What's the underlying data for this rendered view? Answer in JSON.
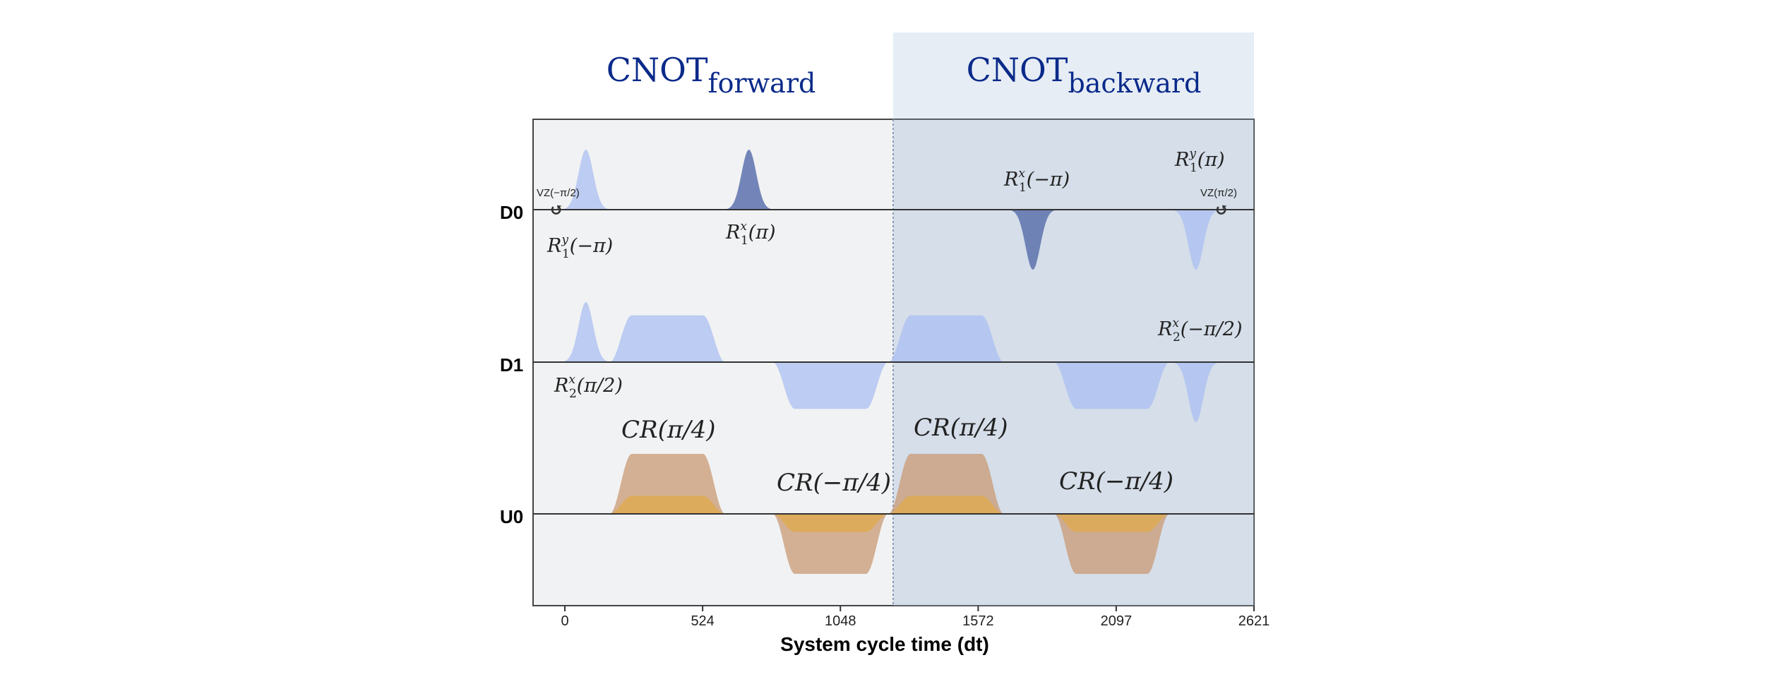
{
  "headers": {
    "forward": {
      "main": "CNOT",
      "sub": "forward"
    },
    "backward": {
      "main": "CNOT",
      "sub": "backward"
    }
  },
  "channels": [
    "D0",
    "D1",
    "U0"
  ],
  "x_axis": {
    "label": "System cycle time (dt)",
    "ticks": [
      "0",
      "524",
      "1048",
      "1572",
      "2097",
      "2621"
    ]
  },
  "vz_labels": {
    "left": "VZ(−π/2)",
    "right": "VZ(π/2)",
    "arrow_glyph": "↺"
  },
  "gate_labels": {
    "d0_ry_neg_pi": {
      "base": "R",
      "sup": "y",
      "sub": "1",
      "arg": "(−π)"
    },
    "d0_rx_pi": {
      "base": "R",
      "sup": "x",
      "sub": "1",
      "arg": "(π)"
    },
    "d0_rx_neg_pi": {
      "base": "R",
      "sup": "x",
      "sub": "1",
      "arg": "(−π)"
    },
    "d0_ry_pi": {
      "base": "R",
      "sup": "y",
      "sub": "1",
      "arg": "(π)"
    },
    "d1_rx_pi_2": {
      "base": "R",
      "sup": "x",
      "sub": "2",
      "arg": "(π/2)"
    },
    "d1_rx_neg_pi_2": {
      "base": "R",
      "sup": "x",
      "sub": "2",
      "arg": "(−π/2)"
    },
    "cr_fwd_pos": "CR(π/4)",
    "cr_fwd_neg": "CR(−π/4)",
    "cr_bwd_pos": "CR(π/4)",
    "cr_bwd_neg": "CR(−π/4)"
  },
  "colors": {
    "header_text": "#0a2a8a",
    "panel_bg": "#f1f2f3",
    "backward_highlight": "#c7d7e8",
    "drive_light": "#a9bff2",
    "drive_dark": "#5d72ad",
    "cr_brown": "#c89a74",
    "cr_gold": "#e0aa4a",
    "axis": "#333333"
  },
  "pulses": {
    "x_max": 2621,
    "D0": [
      {
        "type": "gaussian",
        "center": 80,
        "amp": 1.0,
        "color": "drive_light"
      },
      {
        "type": "gaussian",
        "center": 700,
        "amp": 1.0,
        "color": "drive_dark"
      },
      {
        "type": "gaussian",
        "center": 1780,
        "amp": -1.0,
        "color": "drive_dark"
      },
      {
        "type": "gaussian",
        "center": 2400,
        "amp": -1.0,
        "color": "drive_light"
      }
    ],
    "D1": [
      {
        "type": "gaussian",
        "center": 80,
        "amp": 1.0,
        "color": "drive_light"
      },
      {
        "type": "flattop",
        "start": 170,
        "end": 610,
        "amp": 0.78,
        "color": "drive_light"
      },
      {
        "type": "flattop",
        "start": 790,
        "end": 1230,
        "amp": -0.78,
        "color": "drive_light"
      },
      {
        "type": "flattop",
        "start": 1230,
        "end": 1670,
        "amp": 0.78,
        "color": "drive_light"
      },
      {
        "type": "flattop",
        "start": 1860,
        "end": 2300,
        "amp": -0.78,
        "color": "drive_light"
      },
      {
        "type": "gaussian",
        "center": 2400,
        "amp": -1.0,
        "color": "drive_light"
      }
    ],
    "U0": [
      {
        "type": "flattop",
        "start": 170,
        "end": 610,
        "amp": 1.0,
        "color": "cr_brown"
      },
      {
        "type": "flattop",
        "start": 170,
        "end": 610,
        "amp": 0.3,
        "color": "cr_gold"
      },
      {
        "type": "flattop",
        "start": 790,
        "end": 1230,
        "amp": -1.0,
        "color": "cr_brown"
      },
      {
        "type": "flattop",
        "start": 790,
        "end": 1230,
        "amp": -0.3,
        "color": "cr_gold"
      },
      {
        "type": "flattop",
        "start": 1230,
        "end": 1670,
        "amp": 1.0,
        "color": "cr_brown"
      },
      {
        "type": "flattop",
        "start": 1230,
        "end": 1670,
        "amp": 0.3,
        "color": "cr_gold"
      },
      {
        "type": "flattop",
        "start": 1860,
        "end": 2300,
        "amp": -1.0,
        "color": "cr_brown"
      },
      {
        "type": "flattop",
        "start": 1860,
        "end": 2300,
        "amp": -0.3,
        "color": "cr_gold"
      }
    ]
  }
}
